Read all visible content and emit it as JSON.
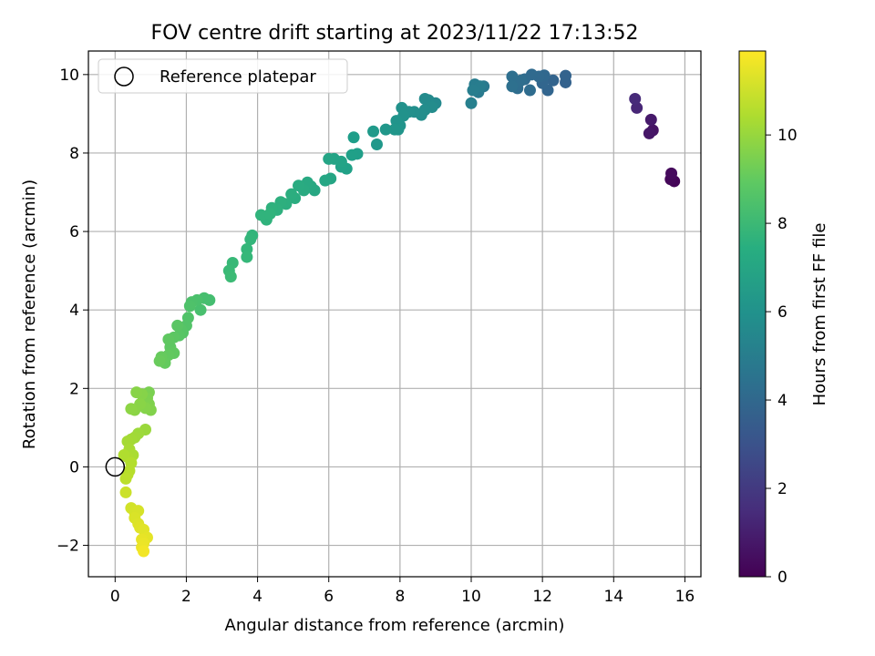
{
  "chart_data": {
    "type": "scatter",
    "title": "FOV centre drift starting at 2023/11/22 17:13:52",
    "xlabel": "Angular distance from reference (arcmin)",
    "ylabel": "Rotation from reference (arcmin)",
    "xlim": [
      -0.75,
      16.45
    ],
    "ylim": [
      -2.8,
      10.6
    ],
    "xticks": [
      0,
      2,
      4,
      6,
      8,
      10,
      12,
      14,
      16
    ],
    "yticks": [
      -2,
      0,
      2,
      4,
      6,
      8,
      10
    ],
    "grid": true,
    "legend": {
      "placement": "top-left",
      "entries": [
        "Reference platepar"
      ]
    },
    "reference_point": {
      "x": 0,
      "y": 0
    },
    "colorbar": {
      "label": "Hours from first FF file",
      "colormap": "viridis",
      "range": [
        0,
        11.9
      ],
      "ticks": [
        0,
        2,
        4,
        6,
        8,
        10
      ]
    },
    "series": [
      {
        "points": [
          [
            15.7,
            7.28,
            0.1
          ],
          [
            15.6,
            7.33,
            0.2
          ],
          [
            15.62,
            7.48,
            0.3
          ],
          [
            15.1,
            8.58,
            0.6
          ],
          [
            15.0,
            8.5,
            0.7
          ],
          [
            15.05,
            8.85,
            0.8
          ],
          [
            14.65,
            9.15,
            1.3
          ],
          [
            14.6,
            9.38,
            1.4
          ],
          [
            12.65,
            9.8,
            3.7
          ],
          [
            12.65,
            9.97,
            3.75
          ],
          [
            12.3,
            9.85,
            3.8
          ],
          [
            12.15,
            9.6,
            3.85
          ],
          [
            12.0,
            9.78,
            3.9
          ],
          [
            12.05,
            9.98,
            3.95
          ],
          [
            11.9,
            9.95,
            4.0
          ],
          [
            11.7,
            10.0,
            4.05
          ],
          [
            11.5,
            9.88,
            4.1
          ],
          [
            11.65,
            9.6,
            4.15
          ],
          [
            11.3,
            9.65,
            4.2
          ],
          [
            11.4,
            9.85,
            4.25
          ],
          [
            11.15,
            9.95,
            4.3
          ],
          [
            11.15,
            9.7,
            4.35
          ],
          [
            10.35,
            9.7,
            4.8
          ],
          [
            10.2,
            9.55,
            4.9
          ],
          [
            10.1,
            9.75,
            5.0
          ],
          [
            10.25,
            9.7,
            5.05
          ],
          [
            10.05,
            9.6,
            5.1
          ],
          [
            10.0,
            9.27,
            5.2
          ],
          [
            9.0,
            9.27,
            5.6
          ],
          [
            8.8,
            9.35,
            5.65
          ],
          [
            8.7,
            9.38,
            5.7
          ],
          [
            8.9,
            9.17,
            5.75
          ],
          [
            8.7,
            9.1,
            5.8
          ],
          [
            8.6,
            8.97,
            5.85
          ],
          [
            8.4,
            9.05,
            5.9
          ],
          [
            8.25,
            9.05,
            5.95
          ],
          [
            8.05,
            9.15,
            6.0
          ],
          [
            8.1,
            8.95,
            6.05
          ],
          [
            8.0,
            8.7,
            6.1
          ],
          [
            7.9,
            8.82,
            6.15
          ],
          [
            7.95,
            8.6,
            6.2
          ],
          [
            7.85,
            8.6,
            6.25
          ],
          [
            7.6,
            8.6,
            6.3
          ],
          [
            7.35,
            8.22,
            6.35
          ],
          [
            7.25,
            8.55,
            6.4
          ],
          [
            6.7,
            8.4,
            6.6
          ],
          [
            6.8,
            7.98,
            6.65
          ],
          [
            6.65,
            7.95,
            6.7
          ],
          [
            6.5,
            7.6,
            6.75
          ],
          [
            6.35,
            7.65,
            6.8
          ],
          [
            6.35,
            7.78,
            6.85
          ],
          [
            6.15,
            7.85,
            6.9
          ],
          [
            6.0,
            7.85,
            6.95
          ],
          [
            6.05,
            7.35,
            7.0
          ],
          [
            5.9,
            7.3,
            7.05
          ],
          [
            5.6,
            7.05,
            7.1
          ],
          [
            5.5,
            7.15,
            7.15
          ],
          [
            5.4,
            7.25,
            7.2
          ],
          [
            5.3,
            7.05,
            7.25
          ],
          [
            5.15,
            7.17,
            7.3
          ],
          [
            5.05,
            6.85,
            7.35
          ],
          [
            4.95,
            6.95,
            7.4
          ],
          [
            4.8,
            6.7,
            7.45
          ],
          [
            4.65,
            6.75,
            7.5
          ],
          [
            4.55,
            6.55,
            7.55
          ],
          [
            4.4,
            6.6,
            7.6
          ],
          [
            4.25,
            6.3,
            7.65
          ],
          [
            4.1,
            6.42,
            7.7
          ],
          [
            4.35,
            6.45,
            7.72
          ],
          [
            3.85,
            5.9,
            7.8
          ],
          [
            3.8,
            5.8,
            7.85
          ],
          [
            3.7,
            5.55,
            7.9
          ],
          [
            3.7,
            5.35,
            7.95
          ],
          [
            3.3,
            5.2,
            8.0
          ],
          [
            3.2,
            5.0,
            8.05
          ],
          [
            3.25,
            4.85,
            8.1
          ],
          [
            2.65,
            4.25,
            8.3
          ],
          [
            2.5,
            4.3,
            8.35
          ],
          [
            2.4,
            4.0,
            8.4
          ],
          [
            2.3,
            4.25,
            8.45
          ],
          [
            2.15,
            4.2,
            8.5
          ],
          [
            2.1,
            4.1,
            8.55
          ],
          [
            2.05,
            3.8,
            8.6
          ],
          [
            2.0,
            3.6,
            8.65
          ],
          [
            1.9,
            3.42,
            8.7
          ],
          [
            1.85,
            3.5,
            8.72
          ],
          [
            1.8,
            3.35,
            8.75
          ],
          [
            1.75,
            3.6,
            8.8
          ],
          [
            1.65,
            3.3,
            8.85
          ],
          [
            1.55,
            3.05,
            8.9
          ],
          [
            1.5,
            3.25,
            8.92
          ],
          [
            1.65,
            2.9,
            8.95
          ],
          [
            1.5,
            2.85,
            9.0
          ],
          [
            1.4,
            2.65,
            9.05
          ],
          [
            1.3,
            2.8,
            9.1
          ],
          [
            1.25,
            2.7,
            9.15
          ],
          [
            0.95,
            1.9,
            9.5
          ],
          [
            0.9,
            1.75,
            9.55
          ],
          [
            0.95,
            1.6,
            9.6
          ],
          [
            1.0,
            1.45,
            9.65
          ],
          [
            0.85,
            1.5,
            9.7
          ],
          [
            0.75,
            1.85,
            9.72
          ],
          [
            0.6,
            1.9,
            9.75
          ],
          [
            0.7,
            1.6,
            9.78
          ],
          [
            0.55,
            1.45,
            9.8
          ],
          [
            0.45,
            1.48,
            9.85
          ],
          [
            0.85,
            0.95,
            10.1
          ],
          [
            0.65,
            0.85,
            10.15
          ],
          [
            0.55,
            0.75,
            10.2
          ],
          [
            0.45,
            0.7,
            10.25
          ],
          [
            0.35,
            0.65,
            10.3
          ],
          [
            0.4,
            0.45,
            10.35
          ],
          [
            0.5,
            0.3,
            10.4
          ],
          [
            0.35,
            0.25,
            10.45
          ],
          [
            0.25,
            0.3,
            10.5
          ],
          [
            0.45,
            0.1,
            10.55
          ],
          [
            0.4,
            -0.1,
            10.6
          ],
          [
            0.35,
            -0.2,
            10.65
          ],
          [
            0.3,
            -0.3,
            10.7
          ],
          [
            0.3,
            -0.65,
            11.0
          ],
          [
            0.45,
            -1.05,
            11.1
          ],
          [
            0.55,
            -1.15,
            11.15
          ],
          [
            0.65,
            -1.12,
            11.2
          ],
          [
            0.55,
            -1.3,
            11.25
          ],
          [
            0.65,
            -1.45,
            11.3
          ],
          [
            0.7,
            -1.55,
            11.35
          ],
          [
            0.8,
            -1.6,
            11.4
          ],
          [
            0.9,
            -1.8,
            11.45
          ],
          [
            0.75,
            -1.85,
            11.5
          ],
          [
            0.8,
            -1.95,
            11.55
          ],
          [
            0.75,
            -2.05,
            11.6
          ],
          [
            0.8,
            -2.15,
            11.7
          ]
        ]
      }
    ]
  }
}
